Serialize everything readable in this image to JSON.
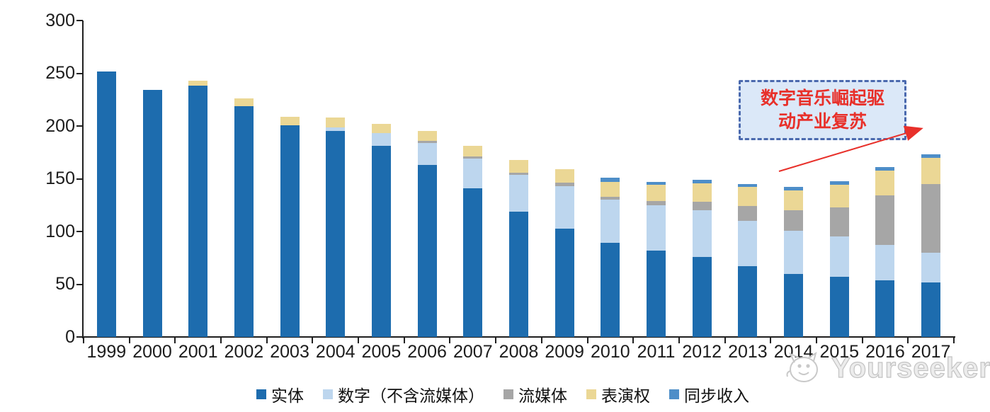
{
  "chart_data": {
    "type": "bar",
    "stacked": true,
    "grid": false,
    "legend_position": "bottom",
    "ylim": [
      0,
      300
    ],
    "yticks": [
      0,
      50,
      100,
      150,
      200,
      250,
      300
    ],
    "categories": [
      "1999",
      "2000",
      "2001",
      "2002",
      "2003",
      "2004",
      "2005",
      "2006",
      "2007",
      "2008",
      "2009",
      "2010",
      "2011",
      "2012",
      "2013",
      "2014",
      "2015",
      "2016",
      "2017"
    ],
    "series": [
      {
        "name": "实体",
        "color": "#1d6cae",
        "values": [
          252,
          234,
          238,
          219,
          201,
          195,
          181,
          163,
          141,
          119,
          103,
          89,
          82,
          76,
          67,
          60,
          57,
          54,
          52
        ]
      },
      {
        "name": "数字（不含流媒体）",
        "color": "#bdd6ee",
        "values": [
          0,
          0,
          0,
          0,
          0,
          4,
          12,
          21,
          28,
          35,
          40,
          41,
          43,
          44,
          43,
          41,
          38,
          33,
          28
        ]
      },
      {
        "name": "流媒体",
        "color": "#a6a6a6",
        "values": [
          0,
          0,
          0,
          0,
          0,
          0,
          0,
          2,
          2,
          2,
          3,
          3,
          4,
          8,
          14,
          19,
          28,
          47,
          65
        ]
      },
      {
        "name": "表演权",
        "color": "#ebd795",
        "values": [
          0,
          0,
          5,
          7,
          8,
          9,
          9,
          9,
          10,
          12,
          13,
          14,
          15,
          18,
          18,
          19,
          21,
          24,
          25
        ]
      },
      {
        "name": "同步收入",
        "color": "#4e8ec8",
        "values": [
          0,
          0,
          0,
          0,
          0,
          0,
          0,
          0,
          0,
          0,
          0,
          4,
          3,
          3,
          3,
          3,
          4,
          3,
          3
        ]
      }
    ]
  },
  "annotation": {
    "line1": "数字音乐崛起驱",
    "line2": "动产业复苏",
    "text_color": "#e8302a",
    "box_fill": "#dbe8f8",
    "box_border": "#4a69ae",
    "arrow_color": "#e8302a"
  },
  "watermark": {
    "text": "Yourseeker",
    "logo": "cat-face-outline",
    "color": "#c3c3c3"
  }
}
